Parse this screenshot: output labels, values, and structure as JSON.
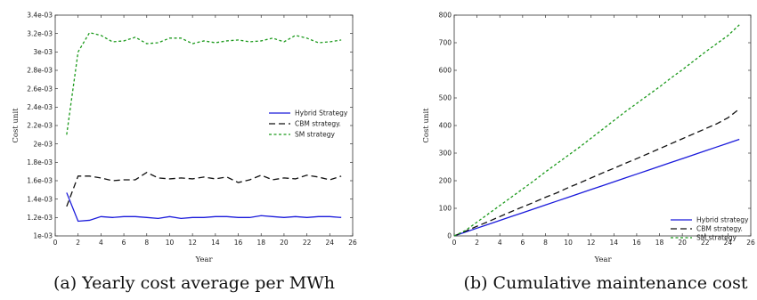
{
  "chart_data": [
    {
      "type": "line",
      "caption": "(a)  Yearly cost average per MWh",
      "xlabel": "Year",
      "ylabel": "Cost unit",
      "xlim": [
        0,
        26
      ],
      "ylim": [
        0.001,
        0.0034
      ],
      "xticks": [
        0,
        2,
        4,
        6,
        8,
        10,
        12,
        14,
        16,
        18,
        20,
        22,
        24,
        26
      ],
      "yticks": [
        0.001,
        0.0012,
        0.0014,
        0.0016,
        0.0018,
        0.002,
        0.0022,
        0.0024,
        0.0026,
        0.0028,
        0.003,
        0.0032,
        0.0034
      ],
      "ytick_labels": [
        "1e-03",
        "1.2e-03",
        "1.4e-03",
        "1.6e-03",
        "1.8e-03",
        "2e-03",
        "2.2e-03",
        "2.4e-03",
        "2.6e-03",
        "2.8e-03",
        "3e-03",
        "3.2e-03",
        "3.4e-03"
      ],
      "legend_position": "center-right",
      "grid": false,
      "x": [
        1,
        2,
        3,
        4,
        5,
        6,
        7,
        8,
        9,
        10,
        11,
        12,
        13,
        14,
        15,
        16,
        17,
        18,
        19,
        20,
        21,
        22,
        23,
        24,
        25
      ],
      "series": [
        {
          "name": "Hybrid Strategy",
          "color": "#1a1adb",
          "dash": "solid",
          "values": [
            0.00147,
            0.00116,
            0.00117,
            0.00121,
            0.0012,
            0.00121,
            0.00121,
            0.0012,
            0.00119,
            0.00121,
            0.00119,
            0.0012,
            0.0012,
            0.00121,
            0.00121,
            0.0012,
            0.0012,
            0.00122,
            0.00121,
            0.0012,
            0.00121,
            0.0012,
            0.00121,
            0.00121,
            0.0012
          ]
        },
        {
          "name": "CBM strategy.",
          "color": "#111111",
          "dash": "dashed",
          "values": [
            0.00132,
            0.00165,
            0.00165,
            0.00163,
            0.0016,
            0.00161,
            0.00161,
            0.00169,
            0.00163,
            0.00162,
            0.00163,
            0.00162,
            0.00164,
            0.00162,
            0.00164,
            0.00158,
            0.00161,
            0.00166,
            0.00161,
            0.00163,
            0.00162,
            0.00166,
            0.00164,
            0.00161,
            0.00165
          ]
        },
        {
          "name": "SM strategy",
          "color": "#1c9a1c",
          "dash": "dotted",
          "values": [
            0.0021,
            0.003,
            0.00321,
            0.00318,
            0.00311,
            0.00312,
            0.00316,
            0.00309,
            0.0031,
            0.00315,
            0.00315,
            0.00309,
            0.00312,
            0.0031,
            0.00312,
            0.00313,
            0.00311,
            0.00312,
            0.00315,
            0.00311,
            0.00318,
            0.00315,
            0.0031,
            0.00311,
            0.00313
          ]
        }
      ]
    },
    {
      "type": "line",
      "caption": "(b)  Cumulative maintenance cost",
      "xlabel": "Year",
      "ylabel": "Cost unit",
      "xlim": [
        0,
        26
      ],
      "ylim": [
        0,
        800
      ],
      "xticks": [
        0,
        2,
        4,
        6,
        8,
        10,
        12,
        14,
        16,
        18,
        20,
        22,
        24,
        26
      ],
      "yticks": [
        0,
        100,
        200,
        300,
        400,
        500,
        600,
        700,
        800
      ],
      "ytick_labels": [
        "0",
        "100",
        "200",
        "300",
        "400",
        "500",
        "600",
        "700",
        "800"
      ],
      "legend_position": "bottom-right",
      "grid": false,
      "x": [
        0,
        1,
        2,
        3,
        4,
        5,
        6,
        7,
        8,
        9,
        10,
        11,
        12,
        13,
        14,
        15,
        16,
        17,
        18,
        19,
        20,
        21,
        22,
        23,
        24,
        25
      ],
      "series": [
        {
          "name": "Hybrid strategy",
          "color": "#1a1adb",
          "dash": "solid",
          "values": [
            0,
            14,
            28,
            42,
            56,
            70,
            84,
            98,
            112,
            126,
            140,
            154,
            168,
            182,
            196,
            210,
            224,
            238,
            252,
            266,
            280,
            294,
            308,
            322,
            336,
            350
          ]
        },
        {
          "name": "CBM strategy.",
          "color": "#111111",
          "dash": "dashed",
          "values": [
            0,
            17,
            35,
            52,
            70,
            88,
            105,
            122,
            140,
            156,
            175,
            192,
            210,
            228,
            245,
            263,
            280,
            298,
            316,
            334,
            352,
            370,
            388,
            406,
            428,
            460
          ]
        },
        {
          "name": "SM strategy",
          "color": "#1c9a1c",
          "dash": "dotted",
          "values": [
            0,
            20,
            50,
            80,
            110,
            140,
            170,
            200,
            232,
            262,
            292,
            322,
            354,
            386,
            418,
            450,
            480,
            510,
            540,
            572,
            602,
            634,
            666,
            696,
            726,
            765
          ]
        }
      ]
    }
  ]
}
